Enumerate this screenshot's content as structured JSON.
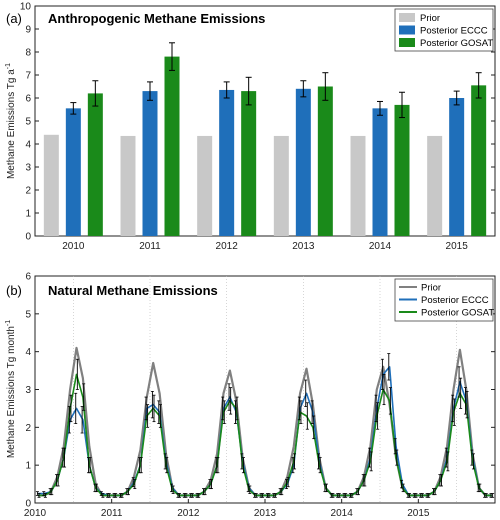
{
  "chart_data": [
    {
      "type": "bar",
      "panel_label": "(a)",
      "title": "Anthropogenic Methane Emissions",
      "ylabel": "Methane Emissions Tg a",
      "ylabel_sup": "-1",
      "categories": [
        "2010",
        "2011",
        "2012",
        "2013",
        "2014",
        "2015"
      ],
      "ylim": [
        0,
        10
      ],
      "yticks": [
        "0",
        "1",
        "2",
        "3",
        "4",
        "5",
        "6",
        "7",
        "8",
        "9",
        "10"
      ],
      "grid": false,
      "legend_position": "top-right",
      "series": [
        {
          "name": "Prior",
          "color": "#c8c8c8",
          "values": [
            4.4,
            4.35,
            4.35,
            4.35,
            4.35,
            4.35
          ],
          "err": [
            0,
            0,
            0,
            0,
            0,
            0
          ]
        },
        {
          "name": "Posterior ECCC",
          "color": "#1f6fba",
          "values": [
            5.55,
            6.3,
            6.35,
            6.4,
            5.55,
            6.0
          ],
          "err": [
            0.25,
            0.4,
            0.35,
            0.35,
            0.3,
            0.3
          ]
        },
        {
          "name": "Posterior GOSAT",
          "color": "#1a8a1a",
          "values": [
            6.2,
            7.8,
            6.3,
            6.5,
            5.7,
            6.55
          ],
          "err": [
            0.55,
            0.6,
            0.6,
            0.6,
            0.55,
            0.55
          ]
        }
      ]
    },
    {
      "type": "line",
      "panel_label": "(b)",
      "title": "Natural Methane Emissions",
      "ylabel": "Methane Emissions Tg month",
      "ylabel_sup": "-1",
      "x_start": 2010.0,
      "x_step_months": 1,
      "xlim": [
        2010,
        2016
      ],
      "xticks": [
        "2010",
        "2011",
        "2012",
        "2013",
        "2014",
        "2015"
      ],
      "ylim": [
        0,
        6
      ],
      "yticks": [
        "0",
        "1",
        "2",
        "3",
        "4",
        "5",
        "6"
      ],
      "grid": "vertical-dotted",
      "legend_position": "top-right",
      "series": [
        {
          "name": "Prior",
          "color": "#808080",
          "values": [
            0.2,
            0.2,
            0.3,
            0.7,
            1.5,
            3.0,
            4.1,
            3.3,
            1.5,
            0.5,
            0.2,
            0.2,
            0.2,
            0.2,
            0.3,
            0.7,
            1.4,
            2.8,
            3.7,
            2.9,
            1.3,
            0.4,
            0.2,
            0.2,
            0.2,
            0.2,
            0.3,
            0.6,
            1.3,
            2.9,
            3.5,
            2.7,
            1.2,
            0.4,
            0.2,
            0.2,
            0.2,
            0.2,
            0.3,
            0.7,
            1.5,
            2.9,
            3.55,
            2.6,
            1.2,
            0.4,
            0.2,
            0.2,
            0.2,
            0.2,
            0.3,
            0.7,
            1.5,
            3.0,
            3.6,
            2.6,
            1.2,
            0.4,
            0.2,
            0.2,
            0.2,
            0.2,
            0.3,
            0.7,
            1.5,
            3.0,
            4.05,
            3.0,
            1.3,
            0.4,
            0.2,
            0.2
          ]
        },
        {
          "name": "Posterior ECCC",
          "color": "#1f6fba",
          "values": [
            0.25,
            0.25,
            0.3,
            0.6,
            1.2,
            2.2,
            2.5,
            2.2,
            1.0,
            0.4,
            0.25,
            0.2,
            0.2,
            0.2,
            0.3,
            0.55,
            1.0,
            2.5,
            2.6,
            2.4,
            1.1,
            0.4,
            0.2,
            0.2,
            0.2,
            0.2,
            0.3,
            0.5,
            1.0,
            2.5,
            2.8,
            2.4,
            1.1,
            0.4,
            0.2,
            0.2,
            0.2,
            0.2,
            0.3,
            0.5,
            1.0,
            2.5,
            2.9,
            2.4,
            1.1,
            0.4,
            0.2,
            0.2,
            0.2,
            0.2,
            0.3,
            0.6,
            1.2,
            2.5,
            3.4,
            3.6,
            1.5,
            0.5,
            0.2,
            0.2,
            0.2,
            0.2,
            0.3,
            0.6,
            1.2,
            2.5,
            3.2,
            2.7,
            1.2,
            0.4,
            0.2,
            0.2
          ]
        },
        {
          "name": "Posterior GOSAT",
          "color": "#1a8a1a",
          "values": [
            0.2,
            0.2,
            0.3,
            0.6,
            1.2,
            2.5,
            3.4,
            2.8,
            1.0,
            0.4,
            0.2,
            0.2,
            0.2,
            0.2,
            0.3,
            0.5,
            1.0,
            2.3,
            2.5,
            2.3,
            1.0,
            0.35,
            0.2,
            0.2,
            0.2,
            0.2,
            0.3,
            0.5,
            1.0,
            2.4,
            2.7,
            2.5,
            1.0,
            0.35,
            0.2,
            0.2,
            0.2,
            0.2,
            0.3,
            0.55,
            1.1,
            2.4,
            2.3,
            2.0,
            1.0,
            0.4,
            0.2,
            0.2,
            0.2,
            0.2,
            0.3,
            0.6,
            1.1,
            2.3,
            3.0,
            2.7,
            1.2,
            0.4,
            0.2,
            0.2,
            0.2,
            0.2,
            0.3,
            0.6,
            1.1,
            2.4,
            2.9,
            2.6,
            1.1,
            0.4,
            0.2,
            0.2
          ],
          "err": [
            0.05,
            0.05,
            0.08,
            0.15,
            0.25,
            0.35,
            0.4,
            0.35,
            0.2,
            0.1,
            0.05,
            0.05,
            0.05,
            0.05,
            0.08,
            0.12,
            0.2,
            0.3,
            0.35,
            0.3,
            0.2,
            0.1,
            0.05,
            0.05,
            0.05,
            0.05,
            0.08,
            0.12,
            0.2,
            0.3,
            0.35,
            0.3,
            0.2,
            0.1,
            0.05,
            0.05,
            0.05,
            0.05,
            0.08,
            0.12,
            0.2,
            0.3,
            0.35,
            0.3,
            0.2,
            0.1,
            0.05,
            0.05,
            0.05,
            0.05,
            0.08,
            0.15,
            0.25,
            0.35,
            0.4,
            0.35,
            0.2,
            0.1,
            0.05,
            0.05,
            0.05,
            0.05,
            0.08,
            0.15,
            0.25,
            0.35,
            0.4,
            0.35,
            0.2,
            0.1,
            0.05,
            0.05
          ]
        }
      ]
    }
  ]
}
